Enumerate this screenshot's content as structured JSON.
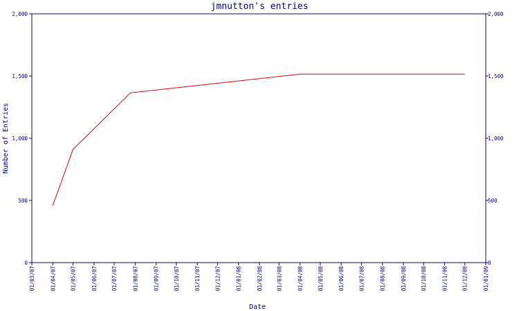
{
  "chart_data": {
    "type": "line",
    "title": "jmnutton's entries",
    "xlabel": "Date",
    "ylabel": "Number of Entries",
    "ylim": [
      0,
      2000
    ],
    "y_ticks": [
      {
        "value": 0,
        "label": "0"
      },
      {
        "value": 500,
        "label": "500"
      },
      {
        "value": 1000,
        "label": "1,000"
      },
      {
        "value": 1500,
        "label": "1,500"
      },
      {
        "value": 2000,
        "label": "2,000"
      }
    ],
    "x_ticks": [
      "01/03/07",
      "01/04/07",
      "01/05/07",
      "01/06/07",
      "01/07/07",
      "01/08/07",
      "01/09/07",
      "01/10/07",
      "01/11/07",
      "01/12/07",
      "01/01/08",
      "01/02/08",
      "01/03/08",
      "01/04/08",
      "01/05/08",
      "01/06/08",
      "01/07/08",
      "01/08/08",
      "01/09/08",
      "01/10/08",
      "01/11/08",
      "01/12/08",
      "01/01/09"
    ],
    "x_range": [
      "01/03/07",
      "01/01/09"
    ],
    "grid": false,
    "series": [
      {
        "color": "#e00000",
        "points": [
          {
            "x": "2007-04-01",
            "y": 460
          },
          {
            "x": "2007-05-01",
            "y": 910
          },
          {
            "x": "2007-07-25",
            "y": 1365
          },
          {
            "x": "2008-04-01",
            "y": 1515
          },
          {
            "x": "2008-12-01",
            "y": 1515
          }
        ]
      }
    ]
  }
}
